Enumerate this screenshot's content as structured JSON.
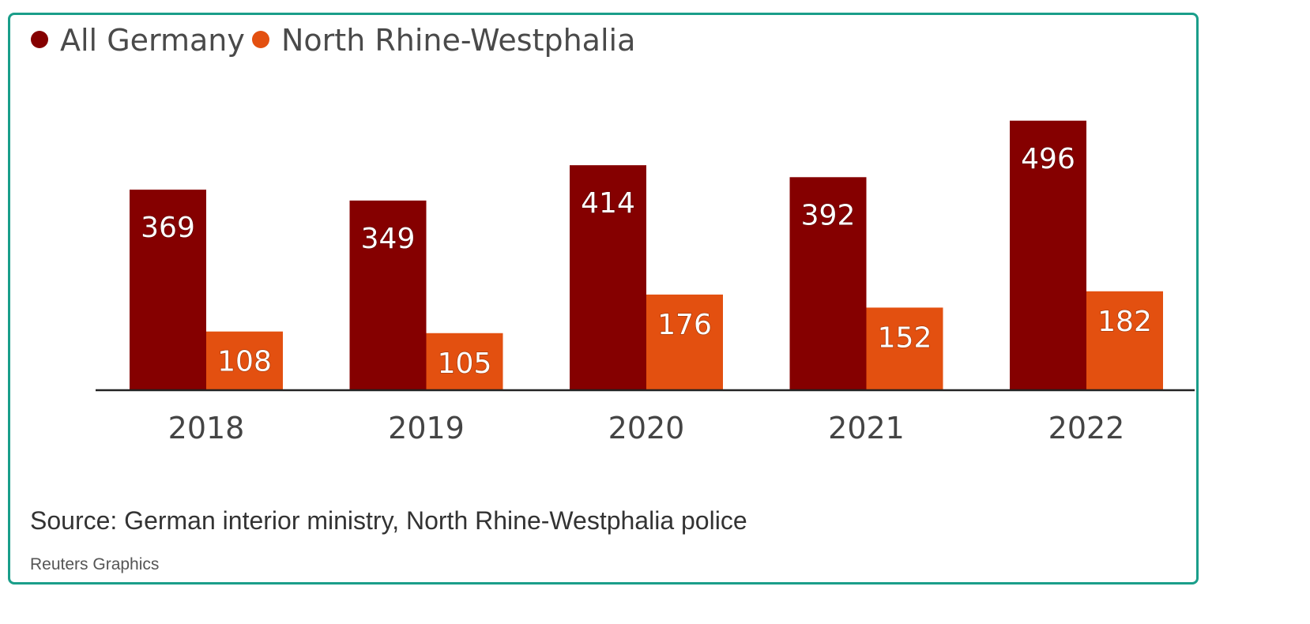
{
  "chart_data": {
    "type": "bar",
    "categories": [
      "2018",
      "2019",
      "2020",
      "2021",
      "2022"
    ],
    "series": [
      {
        "name": "All Germany",
        "values": [
          369,
          349,
          414,
          392,
          496
        ],
        "color": "#850000"
      },
      {
        "name": "North Rhine-Westphalia",
        "values": [
          108,
          105,
          176,
          152,
          182
        ],
        "color": "#e35010"
      }
    ],
    "title": "",
    "xlabel": "",
    "ylabel": "",
    "ylim": [
      0,
      500
    ],
    "grid": false,
    "legend": "top-left",
    "data_labels": true
  },
  "source": "Source: German interior ministry, North Rhine-Westphalia police",
  "credit": "Reuters Graphics",
  "colors": {
    "frame_border": "#1a9e8a",
    "baseline": "#222222"
  }
}
